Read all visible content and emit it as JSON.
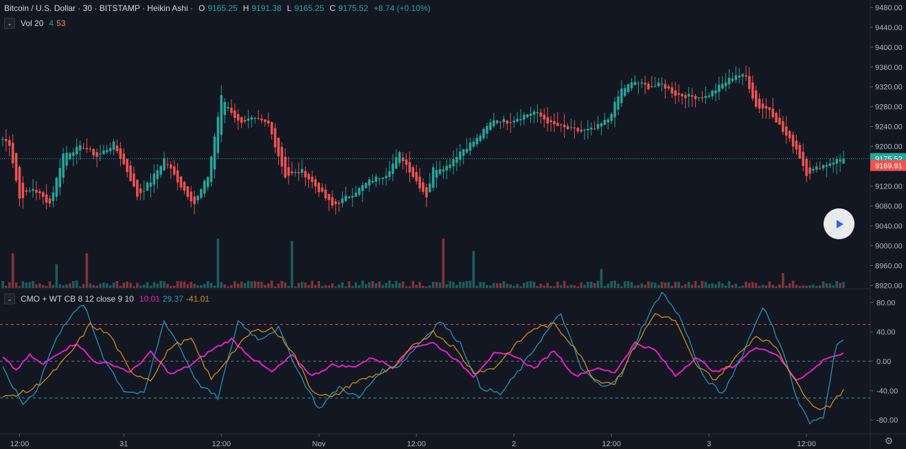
{
  "header": {
    "symbol": "Bitcoin / U.S. Dollar · 30 · BITSTAMP · Heikin Ashi ·",
    "o_label": "O",
    "o_value": "9165.25",
    "h_label": "H",
    "h_value": "9191.38",
    "l_label": "L",
    "l_value": "9165.25",
    "c_label": "C",
    "c_value": "9175.52",
    "change": "+8.74 (+0.10%)"
  },
  "volume_legend": {
    "title": "Vol 20",
    "v1": "4",
    "v2": "53",
    "chevron_icon": "chevron-down-icon"
  },
  "indicator_legend": {
    "title": "CMO + WT CB 8 12 close 9 10",
    "v1": "10.01",
    "v2": "29.37",
    "v3": "-41.01",
    "chevron_icon": "chevron-down-icon"
  },
  "colors": {
    "up": "#26a69a",
    "down": "#ef5350",
    "cmo": "#e91ec8",
    "wt1": "#2196b8",
    "wt2": "#d98a1a",
    "upper_band": "#ef5350",
    "lower_band": "#26a69a",
    "background": "#131722"
  },
  "price_axis": {
    "ticks": [
      "9480.00",
      "9440.00",
      "9400.00",
      "9360.00",
      "9320.00",
      "9280.00",
      "9240.00",
      "9200.00",
      "9160.00",
      "9120.00",
      "9080.00",
      "9040.00",
      "9000.00",
      "8960.00",
      "8920.00"
    ]
  },
  "price_labels": {
    "last": "9175.52",
    "prev": "9169.91"
  },
  "indicator_axis": {
    "ticks": [
      "80.00",
      "40.00",
      "0.00",
      "-40.00",
      "-80.00"
    ]
  },
  "time_axis": {
    "labels": [
      "12:00",
      "31",
      "12:00",
      "Nov",
      "12:00",
      "2",
      "12:00",
      "3",
      "12:00"
    ]
  },
  "play_button": {
    "icon": "play-icon"
  },
  "settings": {
    "icon": "gear-icon"
  },
  "chart_data": [
    {
      "type": "candlestick",
      "title": "Bitcoin / U.S. Dollar · 30 · BITSTAMP · Heikin Ashi",
      "ylim": [
        8915,
        9495
      ],
      "ohlc_last": {
        "open": 9165.25,
        "high": 9191.38,
        "low": 9165.25,
        "close": 9175.52
      },
      "close_path_keypoints": [
        {
          "bar": 0,
          "close": 9215
        },
        {
          "bar": 2,
          "close": 9205
        },
        {
          "bar": 5,
          "close": 9095
        },
        {
          "bar": 9,
          "close": 9115
        },
        {
          "bar": 14,
          "close": 9085
        },
        {
          "bar": 18,
          "close": 9185
        },
        {
          "bar": 24,
          "close": 9200
        },
        {
          "bar": 28,
          "close": 9180
        },
        {
          "bar": 33,
          "close": 9205
        },
        {
          "bar": 37,
          "close": 9150
        },
        {
          "bar": 40,
          "close": 9100
        },
        {
          "bar": 44,
          "close": 9130
        },
        {
          "bar": 48,
          "close": 9175
        },
        {
          "bar": 53,
          "close": 9120
        },
        {
          "bar": 57,
          "close": 9085
        },
        {
          "bar": 61,
          "close": 9140
        },
        {
          "bar": 65,
          "close": 9300
        },
        {
          "bar": 70,
          "close": 9250
        },
        {
          "bar": 74,
          "close": 9255
        },
        {
          "bar": 79,
          "close": 9245
        },
        {
          "bar": 84,
          "close": 9140
        },
        {
          "bar": 89,
          "close": 9150
        },
        {
          "bar": 93,
          "close": 9120
        },
        {
          "bar": 98,
          "close": 9080
        },
        {
          "bar": 104,
          "close": 9105
        },
        {
          "bar": 109,
          "close": 9130
        },
        {
          "bar": 114,
          "close": 9145
        },
        {
          "bar": 118,
          "close": 9185
        },
        {
          "bar": 123,
          "close": 9130
        },
        {
          "bar": 126,
          "close": 9100
        },
        {
          "bar": 128,
          "close": 9155
        },
        {
          "bar": 132,
          "close": 9160
        },
        {
          "bar": 136,
          "close": 9190
        },
        {
          "bar": 141,
          "close": 9215
        },
        {
          "bar": 146,
          "close": 9255
        },
        {
          "bar": 150,
          "close": 9250
        },
        {
          "bar": 154,
          "close": 9260
        },
        {
          "bar": 158,
          "close": 9270
        },
        {
          "bar": 163,
          "close": 9245
        },
        {
          "bar": 168,
          "close": 9235
        },
        {
          "bar": 172,
          "close": 9230
        },
        {
          "bar": 176,
          "close": 9235
        },
        {
          "bar": 180,
          "close": 9255
        },
        {
          "bar": 184,
          "close": 9315
        },
        {
          "bar": 188,
          "close": 9330
        },
        {
          "bar": 192,
          "close": 9320
        },
        {
          "bar": 196,
          "close": 9325
        },
        {
          "bar": 200,
          "close": 9305
        },
        {
          "bar": 205,
          "close": 9300
        },
        {
          "bar": 209,
          "close": 9300
        },
        {
          "bar": 214,
          "close": 9325
        },
        {
          "bar": 218,
          "close": 9345
        },
        {
          "bar": 221,
          "close": 9340
        },
        {
          "bar": 224,
          "close": 9280
        },
        {
          "bar": 228,
          "close": 9275
        },
        {
          "bar": 232,
          "close": 9230
        },
        {
          "bar": 236,
          "close": 9195
        },
        {
          "bar": 239,
          "close": 9145
        },
        {
          "bar": 243,
          "close": 9160
        },
        {
          "bar": 247,
          "close": 9170
        },
        {
          "bar": 250,
          "close": 9176
        }
      ]
    },
    {
      "type": "bar",
      "title": "Vol 20",
      "note": "volume histogram coloured by candle direction; largest spikes near bars 25, 64, 86, 131",
      "spikes": [
        {
          "bar": 3,
          "value": 70
        },
        {
          "bar": 16,
          "value": 48
        },
        {
          "bar": 25,
          "value": 70
        },
        {
          "bar": 64,
          "value": 100
        },
        {
          "bar": 86,
          "value": 95
        },
        {
          "bar": 131,
          "value": 100
        },
        {
          "bar": 140,
          "value": 75
        },
        {
          "bar": 178,
          "value": 38
        },
        {
          "bar": 232,
          "value": 30
        }
      ]
    },
    {
      "type": "line",
      "title": "CMO + WT CB 8 12 close 9 10",
      "ylim": [
        -98,
        98
      ],
      "bands": [
        50,
        0,
        -50
      ],
      "last_values": {
        "cmo": 10.01,
        "wt1": 29.37,
        "wt2": -41.01
      },
      "series": [
        {
          "name": "CMO",
          "keypoints": [
            [
              0,
              5
            ],
            [
              4,
              -12
            ],
            [
              8,
              8
            ],
            [
              12,
              -5
            ],
            [
              16,
              10
            ],
            [
              22,
              25
            ],
            [
              27,
              0
            ],
            [
              33,
              -5
            ],
            [
              38,
              -15
            ],
            [
              44,
              12
            ],
            [
              50,
              -18
            ],
            [
              56,
              -5
            ],
            [
              62,
              15
            ],
            [
              68,
              30
            ],
            [
              74,
              5
            ],
            [
              80,
              -15
            ],
            [
              86,
              8
            ],
            [
              92,
              -20
            ],
            [
              98,
              -5
            ],
            [
              104,
              -8
            ],
            [
              110,
              5
            ],
            [
              116,
              -8
            ],
            [
              122,
              20
            ],
            [
              128,
              25
            ],
            [
              134,
              5
            ],
            [
              140,
              -20
            ],
            [
              146,
              10
            ],
            [
              152,
              8
            ],
            [
              158,
              -10
            ],
            [
              164,
              15
            ],
            [
              170,
              -20
            ],
            [
              176,
              -10
            ],
            [
              182,
              -15
            ],
            [
              188,
              25
            ],
            [
              194,
              15
            ],
            [
              200,
              -20
            ],
            [
              206,
              5
            ],
            [
              212,
              -15
            ],
            [
              218,
              -5
            ],
            [
              224,
              20
            ],
            [
              230,
              10
            ],
            [
              236,
              -25
            ],
            [
              240,
              -15
            ],
            [
              245,
              5
            ],
            [
              250,
              10
            ]
          ]
        },
        {
          "name": "WT1",
          "keypoints": [
            [
              0,
              -10
            ],
            [
              6,
              -58
            ],
            [
              10,
              -40
            ],
            [
              14,
              10
            ],
            [
              18,
              50
            ],
            [
              24,
              78
            ],
            [
              30,
              5
            ],
            [
              36,
              -40
            ],
            [
              42,
              -45
            ],
            [
              48,
              55
            ],
            [
              52,
              25
            ],
            [
              58,
              -30
            ],
            [
              64,
              -50
            ],
            [
              70,
              55
            ],
            [
              76,
              30
            ],
            [
              82,
              45
            ],
            [
              88,
              -15
            ],
            [
              94,
              -65
            ],
            [
              100,
              -35
            ],
            [
              106,
              -50
            ],
            [
              112,
              -15
            ],
            [
              118,
              -5
            ],
            [
              124,
              25
            ],
            [
              130,
              55
            ],
            [
              136,
              25
            ],
            [
              142,
              -35
            ],
            [
              148,
              -45
            ],
            [
              154,
              -10
            ],
            [
              160,
              30
            ],
            [
              166,
              65
            ],
            [
              172,
              -10
            ],
            [
              178,
              -35
            ],
            [
              184,
              -20
            ],
            [
              190,
              45
            ],
            [
              196,
              95
            ],
            [
              202,
              55
            ],
            [
              208,
              -20
            ],
            [
              214,
              -45
            ],
            [
              220,
              10
            ],
            [
              226,
              75
            ],
            [
              232,
              15
            ],
            [
              236,
              -50
            ],
            [
              240,
              -85
            ],
            [
              244,
              -75
            ],
            [
              248,
              25
            ],
            [
              250,
              29
            ]
          ]
        },
        {
          "name": "WT2",
          "keypoints": [
            [
              0,
              -50
            ],
            [
              8,
              -40
            ],
            [
              14,
              -20
            ],
            [
              20,
              10
            ],
            [
              26,
              50
            ],
            [
              32,
              35
            ],
            [
              38,
              -15
            ],
            [
              44,
              -25
            ],
            [
              50,
              20
            ],
            [
              56,
              30
            ],
            [
              62,
              -25
            ],
            [
              68,
              10
            ],
            [
              74,
              40
            ],
            [
              80,
              45
            ],
            [
              86,
              15
            ],
            [
              92,
              -40
            ],
            [
              98,
              -50
            ],
            [
              104,
              -30
            ],
            [
              110,
              -20
            ],
            [
              116,
              -10
            ],
            [
              122,
              20
            ],
            [
              128,
              40
            ],
            [
              134,
              20
            ],
            [
              140,
              -15
            ],
            [
              146,
              -10
            ],
            [
              152,
              20
            ],
            [
              158,
              45
            ],
            [
              164,
              50
            ],
            [
              170,
              20
            ],
            [
              176,
              -25
            ],
            [
              182,
              -30
            ],
            [
              188,
              20
            ],
            [
              194,
              65
            ],
            [
              200,
              55
            ],
            [
              206,
              -5
            ],
            [
              212,
              -25
            ],
            [
              218,
              5
            ],
            [
              224,
              35
            ],
            [
              230,
              20
            ],
            [
              236,
              -30
            ],
            [
              242,
              -65
            ],
            [
              246,
              -60
            ],
            [
              250,
              -41
            ]
          ]
        }
      ]
    }
  ]
}
